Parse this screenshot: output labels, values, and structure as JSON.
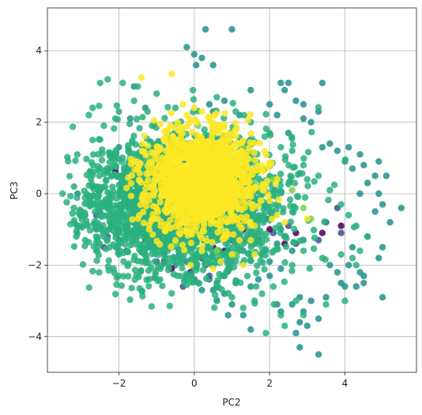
{
  "chart_data": {
    "type": "scatter",
    "title": "",
    "xlabel": "PC2",
    "ylabel": "PC3",
    "xlim": [
      -3.9,
      5.9
    ],
    "ylim": [
      -5.0,
      5.2
    ],
    "xticks": [
      -2,
      0,
      2,
      4
    ],
    "yticks": [
      -4,
      -2,
      0,
      2,
      4
    ],
    "xtick_labels": [
      "−2",
      "0",
      "2",
      "4"
    ],
    "ytick_labels": [
      "−4",
      "−2",
      "0",
      "2",
      "4"
    ],
    "grid": true,
    "colormap": "viridis",
    "point_alpha": 0.85,
    "clusters": [
      {
        "color": "#21918c",
        "note_color_role": "teal outliers",
        "points": [
          [
            -0.2,
            4.1
          ],
          [
            0.3,
            4.6
          ],
          [
            1.0,
            4.6
          ],
          [
            0.0,
            3.9
          ],
          [
            0.2,
            3.8
          ],
          [
            0.05,
            3.6
          ],
          [
            0.5,
            3.6
          ],
          [
            2.3,
            3.1
          ],
          [
            2.4,
            2.9
          ],
          [
            2.5,
            3.1
          ],
          [
            3.4,
            3.1
          ],
          [
            2.0,
            2.5
          ],
          [
            2.2,
            2.2
          ],
          [
            2.7,
            2.6
          ],
          [
            2.9,
            2.5
          ],
          [
            3.3,
            2.3
          ],
          [
            2.9,
            2.1
          ],
          [
            3.1,
            2.0
          ],
          [
            2.5,
            1.7
          ],
          [
            3.4,
            1.3
          ],
          [
            3.6,
            1.4
          ],
          [
            3.8,
            1.2
          ],
          [
            4.1,
            1.3
          ],
          [
            4.0,
            0.9
          ],
          [
            4.2,
            0.7
          ],
          [
            4.4,
            1.1
          ],
          [
            4.5,
            0.8
          ],
          [
            4.6,
            0.3
          ],
          [
            4.8,
            0.5
          ],
          [
            4.9,
            0.9
          ],
          [
            4.4,
            0.0
          ],
          [
            4.9,
            0.0
          ],
          [
            5.1,
            0.5
          ],
          [
            5.0,
            -0.3
          ],
          [
            5.2,
            -0.8
          ],
          [
            4.8,
            -0.5
          ],
          [
            5.5,
            -0.4
          ],
          [
            4.6,
            -1.2
          ],
          [
            4.2,
            -1.5
          ],
          [
            5.0,
            -1.5
          ],
          [
            4.9,
            -1.8
          ],
          [
            4.4,
            -2.2
          ],
          [
            4.1,
            -2.0
          ],
          [
            3.6,
            -2.0
          ],
          [
            3.8,
            -2.2
          ],
          [
            3.9,
            -2.5
          ],
          [
            4.0,
            -2.6
          ],
          [
            4.3,
            -2.6
          ],
          [
            3.5,
            -2.9
          ],
          [
            4.5,
            -2.3
          ],
          [
            4.5,
            -2.5
          ],
          [
            5.0,
            -2.9
          ],
          [
            3.1,
            -3.0
          ],
          [
            2.8,
            -2.9
          ],
          [
            2.6,
            -3.1
          ],
          [
            2.2,
            -3.1
          ],
          [
            2.3,
            -3.3
          ],
          [
            2.9,
            -3.3
          ],
          [
            3.3,
            -3.5
          ],
          [
            3.0,
            -3.7
          ],
          [
            2.8,
            -3.6
          ],
          [
            2.7,
            -3.9
          ],
          [
            2.8,
            -4.3
          ],
          [
            3.3,
            -4.5
          ],
          [
            1.5,
            -3.8
          ],
          [
            1.3,
            -3.4
          ],
          [
            1.0,
            -3.1
          ],
          [
            0.9,
            -3.4
          ],
          [
            0.6,
            -3.0
          ],
          [
            0.8,
            -2.8
          ],
          [
            0.5,
            -2.7
          ],
          [
            0.2,
            -2.7
          ],
          [
            0.6,
            -2.5
          ],
          [
            1.1,
            -2.5
          ],
          [
            1.5,
            -2.6
          ],
          [
            1.7,
            -2.4
          ],
          [
            2.0,
            -2.3
          ],
          [
            2.3,
            -2.1
          ],
          [
            2.0,
            -1.9
          ],
          [
            1.9,
            -1.6
          ],
          [
            2.2,
            -1.4
          ],
          [
            2.6,
            -1.6
          ],
          [
            2.9,
            -1.3
          ],
          [
            2.3,
            -1.0
          ],
          [
            1.6,
            -1.4
          ],
          [
            1.3,
            -1.6
          ],
          [
            1.0,
            -1.9
          ],
          [
            0.8,
            -2.3
          ],
          [
            0.4,
            -2.4
          ],
          [
            -0.2,
            -2.3
          ],
          [
            -0.5,
            -2.0
          ],
          [
            -0.8,
            -1.7
          ],
          [
            -1.2,
            -1.5
          ],
          [
            -1.6,
            -1.3
          ],
          [
            -2.0,
            -1.0
          ],
          [
            -2.5,
            -0.5
          ],
          [
            -2.9,
            -0.6
          ],
          [
            -3.1,
            0.0
          ],
          [
            -3.0,
            -0.5
          ],
          [
            -2.7,
            0.2
          ],
          [
            -2.6,
            -1.0
          ],
          [
            -2.3,
            0.6
          ],
          [
            -1.9,
            0.3
          ],
          [
            -2.0,
            1.3
          ],
          [
            -1.7,
            2.1
          ],
          [
            -1.3,
            2.4
          ],
          [
            -1.6,
            3.0
          ],
          [
            0.5,
            2.3
          ],
          [
            1.5,
            2.9
          ],
          [
            1.2,
            2.2
          ],
          [
            0.4,
            2.5
          ],
          [
            0.8,
            2.6
          ]
        ]
      },
      {
        "color": "#3b528b",
        "note_color_role": "blue-purple",
        "points": [
          [
            -2.6,
            -0.6
          ],
          [
            -2.2,
            -0.9
          ],
          [
            -2.0,
            -1.3
          ],
          [
            -1.8,
            -1.6
          ],
          [
            -1.4,
            -1.6
          ],
          [
            -1.1,
            -1.3
          ],
          [
            -1.6,
            -0.8
          ],
          [
            -2.3,
            -1.2
          ],
          [
            -1.0,
            -1.9
          ],
          [
            -0.8,
            -1.6
          ],
          [
            -0.6,
            -1.2
          ],
          [
            -0.4,
            -1.7
          ],
          [
            -0.2,
            -1.9
          ],
          [
            0.0,
            -2.4
          ],
          [
            0.3,
            -2.0
          ],
          [
            0.7,
            -1.9
          ],
          [
            0.9,
            -1.6
          ],
          [
            1.2,
            -1.2
          ],
          [
            1.5,
            -1.1
          ],
          [
            1.7,
            -1.3
          ],
          [
            1.4,
            -0.6
          ],
          [
            1.9,
            -0.7
          ],
          [
            2.1,
            -1.1
          ],
          [
            2.4,
            -1.2
          ],
          [
            2.7,
            -1.4
          ],
          [
            2.5,
            -0.9
          ],
          [
            3.3,
            -1.3
          ],
          [
            3.5,
            -0.8
          ],
          [
            3.9,
            -1.1
          ],
          [
            3.8,
            -0.4
          ],
          [
            -0.3,
            -2.6
          ],
          [
            0.4,
            -2.3
          ],
          [
            -2.1,
            0.7
          ],
          [
            -2.5,
            0.1
          ],
          [
            -1.9,
            0.5
          ],
          [
            -2.4,
            -1.5
          ]
        ]
      },
      {
        "color": "#440154",
        "note_color_role": "dark purple",
        "points": [
          [
            -2.1,
            0.6
          ],
          [
            -1.8,
            0.2
          ],
          [
            -1.3,
            -1.3
          ],
          [
            -0.8,
            -1.9
          ],
          [
            -0.6,
            -2.1
          ],
          [
            -0.1,
            -2.2
          ],
          [
            0.5,
            -1.5
          ],
          [
            0.6,
            -1.2
          ],
          [
            1.0,
            -1.3
          ],
          [
            1.3,
            -1.0
          ],
          [
            1.6,
            -0.9
          ],
          [
            2.0,
            -1.0
          ],
          [
            2.4,
            -1.4
          ],
          [
            2.7,
            -1.1
          ],
          [
            3.4,
            -1.1
          ],
          [
            3.9,
            -0.9
          ],
          [
            -1.2,
            -1.1
          ],
          [
            -0.1,
            -1.4
          ],
          [
            0.2,
            -1.8
          ],
          [
            0.8,
            -1.6
          ]
        ]
      },
      {
        "color": "#2ab07f",
        "note_color_role": "main green cloud",
        "spread": {
          "center": [
            -0.3,
            -0.3
          ],
          "sd": [
            1.25,
            0.95
          ],
          "count": 2600,
          "seed": 11,
          "bounds": [
            -3.4,
            4.6,
            -3.3,
            3.2
          ]
        },
        "points": [
          [
            -3.5,
            0.0
          ],
          [
            -3.0,
            -0.6
          ],
          [
            -2.8,
            2.2
          ],
          [
            -2.7,
            2.4
          ],
          [
            -2.5,
            3.1
          ],
          [
            -2.3,
            3.2
          ],
          [
            -1.9,
            3.1
          ],
          [
            -1.5,
            3.0
          ],
          [
            -2.7,
            1.5
          ],
          [
            -2.4,
            1.9
          ],
          [
            -2.0,
            2.3
          ],
          [
            -1.6,
            2.6
          ],
          [
            -1.0,
            2.8
          ],
          [
            -0.5,
            2.4
          ],
          [
            0.6,
            2.7
          ],
          [
            1.1,
            2.3
          ],
          [
            1.5,
            2.0
          ],
          [
            2.0,
            1.7
          ],
          [
            2.3,
            1.3
          ],
          [
            2.6,
            1.2
          ],
          [
            2.9,
            0.8
          ],
          [
            3.0,
            0.4
          ],
          [
            3.3,
            0.5
          ],
          [
            3.6,
            0.1
          ],
          [
            3.9,
            -0.3
          ],
          [
            4.1,
            -0.6
          ],
          [
            4.3,
            -0.9
          ],
          [
            4.6,
            -1.2
          ],
          [
            4.4,
            -1.6
          ],
          [
            4.2,
            -1.8
          ],
          [
            3.9,
            -1.7
          ],
          [
            3.4,
            -1.8
          ],
          [
            2.9,
            -1.6
          ],
          [
            2.6,
            -2.0
          ],
          [
            2.1,
            -2.6
          ],
          [
            1.8,
            -2.8
          ],
          [
            1.6,
            -3.0
          ],
          [
            1.3,
            -3.2
          ],
          [
            1.0,
            -2.9
          ],
          [
            0.6,
            -2.6
          ],
          [
            -0.2,
            -2.4
          ],
          [
            -0.9,
            -2.1
          ],
          [
            -1.4,
            -1.9
          ],
          [
            -2.0,
            -1.7
          ],
          [
            -2.6,
            -1.6
          ],
          [
            -2.9,
            -1.3
          ],
          [
            -3.1,
            -0.9
          ],
          [
            -3.2,
            -0.4
          ],
          [
            2.7,
            -3.0
          ],
          [
            2.3,
            -3.4
          ],
          [
            1.9,
            -3.9
          ],
          [
            2.4,
            -3.7
          ],
          [
            2.9,
            -3.4
          ],
          [
            3.5,
            -3.1
          ],
          [
            4.0,
            -3.0
          ],
          [
            4.3,
            -2.0
          ]
        ]
      },
      {
        "color": "#7ad151",
        "note_color_role": "light green",
        "points": [
          [
            -0.6,
            1.5
          ],
          [
            -0.3,
            1.7
          ],
          [
            0.1,
            1.9
          ],
          [
            0.5,
            1.8
          ],
          [
            0.9,
            1.6
          ],
          [
            1.3,
            1.3
          ],
          [
            -1.2,
            1.0
          ],
          [
            -0.9,
            0.7
          ],
          [
            1.4,
            0.7
          ],
          [
            1.6,
            0.3
          ],
          [
            1.8,
            -0.2
          ],
          [
            2.1,
            0.4
          ],
          [
            2.6,
            0.1
          ],
          [
            2.9,
            -0.4
          ],
          [
            3.1,
            -0.7
          ],
          [
            0.6,
            -1.6
          ],
          [
            1.1,
            -1.7
          ],
          [
            -0.5,
            -1.4
          ]
        ]
      },
      {
        "color": "#fde725",
        "note_color_role": "yellow core",
        "spread": {
          "center": [
            0.15,
            0.35
          ],
          "sd": [
            0.72,
            0.72
          ],
          "count": 1400,
          "seed": 23,
          "bounds": [
            -1.8,
            2.3,
            -1.6,
            2.3
          ]
        },
        "points": [
          [
            -1.4,
            3.25
          ],
          [
            -0.6,
            3.35
          ],
          [
            -0.3,
            2.5
          ],
          [
            0.0,
            2.4
          ],
          [
            0.2,
            2.3
          ],
          [
            -0.2,
            2.2
          ],
          [
            0.4,
            2.1
          ],
          [
            -0.7,
            1.8
          ],
          [
            1.3,
            0.5
          ],
          [
            1.8,
            0.2
          ],
          [
            2.2,
            0.4
          ],
          [
            2.0,
            -0.2
          ],
          [
            2.2,
            -0.6
          ],
          [
            2.4,
            -0.8
          ],
          [
            3.0,
            -0.7
          ],
          [
            1.6,
            -0.9
          ],
          [
            1.5,
            -1.3
          ],
          [
            1.2,
            -1.3
          ],
          [
            1.0,
            -1.7
          ],
          [
            0.7,
            -1.9
          ],
          [
            0.5,
            -2.1
          ],
          [
            0.2,
            -1.6
          ],
          [
            -0.1,
            -2.0
          ],
          [
            -0.5,
            -1.3
          ],
          [
            -1.2,
            -1.0
          ],
          [
            -1.5,
            -0.7
          ],
          [
            1.6,
            -1.7
          ],
          [
            1.3,
            -2.0
          ]
        ]
      }
    ]
  }
}
